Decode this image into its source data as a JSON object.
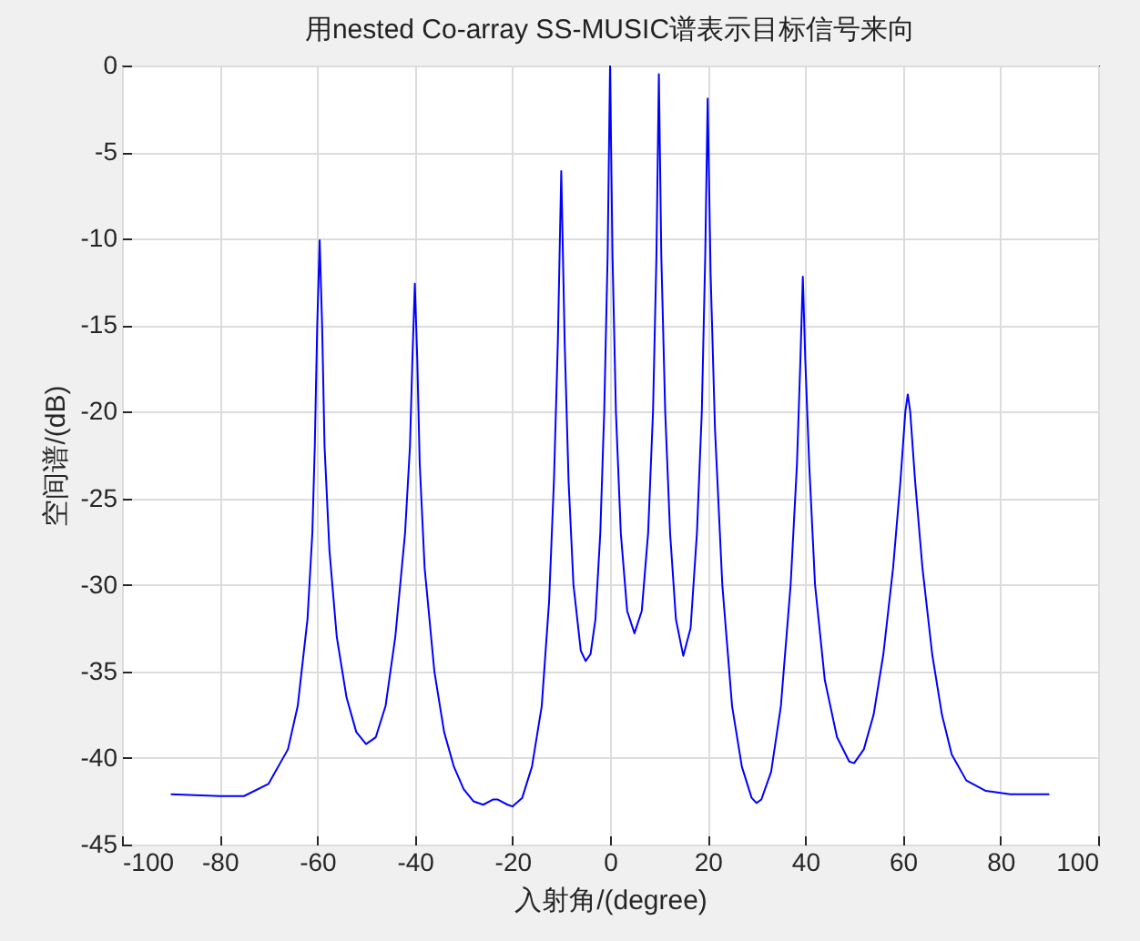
{
  "chart_data": {
    "type": "line",
    "title": "用nested Co-array SS-MUSIC谱表示目标信号来向",
    "xlabel": "入射角/(degree)",
    "ylabel": "空间谱/(dB)",
    "xlim": [
      -100,
      100
    ],
    "xticks": [
      -100,
      -80,
      -60,
      -40,
      -20,
      0,
      20,
      40,
      60,
      80,
      100
    ],
    "ylim": [
      -45,
      0
    ],
    "yticks": [
      -45,
      -40,
      -35,
      -30,
      -25,
      -20,
      -15,
      -10,
      -5,
      0
    ],
    "grid": true,
    "series": [
      {
        "color": "#0000ff",
        "x": [
          -90,
          -80,
          -75,
          -70,
          -66,
          -64,
          -62,
          -61,
          -60.5,
          -60,
          -59.5,
          -59,
          -58.5,
          -57.5,
          -56,
          -54,
          -52,
          -50,
          -48,
          -46,
          -44,
          -42,
          -41,
          -40.5,
          -40,
          -39.5,
          -39,
          -38,
          -36,
          -34,
          -32,
          -30,
          -28,
          -26,
          -24,
          -23,
          -21,
          -20,
          -18,
          -16,
          -14,
          -12.5,
          -11.5,
          -10.7,
          -10,
          -9.3,
          -8.5,
          -7.5,
          -6,
          -5,
          -4,
          -3,
          -2,
          -1.2,
          -0.5,
          0,
          0.5,
          1.2,
          2.2,
          3.5,
          5,
          6.5,
          7.8,
          8.8,
          9.5,
          10,
          10.5,
          11.3,
          12.3,
          13.5,
          15,
          16.5,
          17.8,
          18.8,
          19.5,
          20,
          20.6,
          21.5,
          23,
          25,
          27,
          29,
          30,
          31,
          33,
          35,
          37,
          38.3,
          39,
          39.5,
          40,
          40.8,
          42,
          44,
          46.5,
          49,
          50,
          52,
          54,
          56,
          58,
          59.5,
          60.5,
          61,
          61.5,
          62.5,
          64,
          66,
          68,
          70,
          73,
          77,
          82,
          90
        ],
        "values": [
          -42.1,
          -42.2,
          -42.2,
          -41.5,
          -39.5,
          -37,
          -32,
          -27,
          -22,
          -15,
          -10.1,
          -15,
          -22,
          -28,
          -33,
          -36.5,
          -38.5,
          -39.2,
          -38.8,
          -37,
          -33,
          -27,
          -22,
          -17,
          -12.6,
          -17,
          -23,
          -29,
          -35,
          -38.5,
          -40.5,
          -41.8,
          -42.5,
          -42.7,
          -42.4,
          -42.4,
          -42.7,
          -42.8,
          -42.3,
          -40.5,
          -37,
          -31,
          -24,
          -16,
          -6.1,
          -16,
          -24,
          -30,
          -33.8,
          -34.4,
          -34,
          -32,
          -27,
          -20,
          -11,
          0,
          -11,
          -20,
          -27,
          -31.5,
          -32.8,
          -31.5,
          -27,
          -20,
          -11,
          -0.5,
          -11,
          -20,
          -27,
          -32,
          -34.1,
          -32.5,
          -27,
          -20,
          -11,
          -1.9,
          -12,
          -21,
          -30,
          -37,
          -40.5,
          -42.3,
          -42.6,
          -42.4,
          -40.8,
          -37,
          -30,
          -23,
          -17,
          -12.2,
          -17,
          -23,
          -30,
          -35.5,
          -38.8,
          -40.2,
          -40.3,
          -39.5,
          -37.5,
          -34,
          -29,
          -24,
          -20,
          -19,
          -20,
          -24,
          -29,
          -34,
          -37.5,
          -39.8,
          -41.3,
          -41.9,
          -42.1,
          -42.1
        ]
      }
    ]
  }
}
